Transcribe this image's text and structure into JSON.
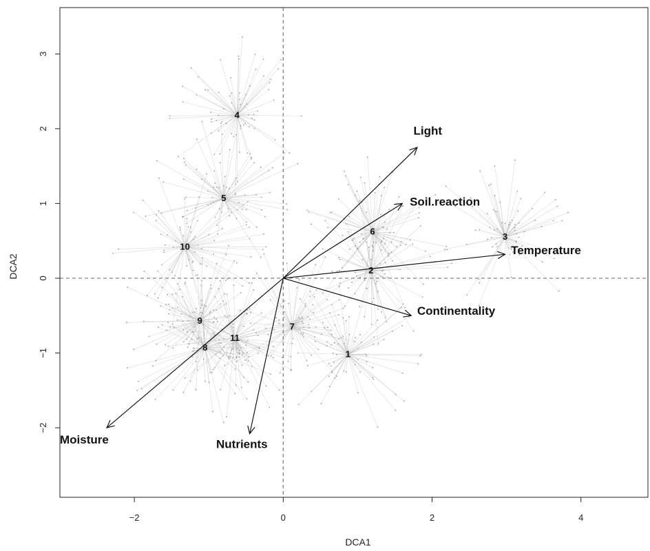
{
  "chart_data": {
    "type": "scatter",
    "title": "",
    "xlabel": "DCA1",
    "ylabel": "DCA2",
    "xlim": [
      -3.0,
      4.9
    ],
    "ylim": [
      -2.93,
      3.62
    ],
    "x_ticks": [
      -2,
      0,
      2,
      4
    ],
    "y_ticks": [
      -2,
      -1,
      0,
      1,
      2,
      3
    ],
    "x_tick_labels": [
      "−2",
      "0",
      "2",
      "4"
    ],
    "y_tick_labels": [
      "−2",
      "−1",
      "0",
      "1",
      "2",
      "3"
    ],
    "reference_lines": {
      "x": 0,
      "y": 0,
      "style": "dashed"
    },
    "grid": false,
    "legend": "none",
    "cluster_centroids": [
      {
        "label": "1",
        "x": 0.87,
        "y": -1.02
      },
      {
        "label": "2",
        "x": 1.18,
        "y": 0.1
      },
      {
        "label": "3",
        "x": 2.98,
        "y": 0.55
      },
      {
        "label": "4",
        "x": -0.62,
        "y": 2.18
      },
      {
        "label": "5",
        "x": -0.8,
        "y": 1.07
      },
      {
        "label": "6",
        "x": 1.2,
        "y": 0.62
      },
      {
        "label": "7",
        "x": 0.12,
        "y": -0.65
      },
      {
        "label": "8",
        "x": -1.05,
        "y": -0.93
      },
      {
        "label": "9",
        "x": -1.12,
        "y": -0.57
      },
      {
        "label": "10",
        "x": -1.32,
        "y": 0.42
      },
      {
        "label": "11",
        "x": -0.65,
        "y": -0.8
      }
    ],
    "environmental_vectors": [
      {
        "name": "Light",
        "x": 1.8,
        "y": 1.75
      },
      {
        "name": "Soil.reaction",
        "x": 1.6,
        "y": 1.0
      },
      {
        "name": "Temperature",
        "x": 2.98,
        "y": 0.32
      },
      {
        "name": "Continentality",
        "x": 1.72,
        "y": -0.5
      },
      {
        "name": "Nutrients",
        "x": -0.45,
        "y": -2.08
      },
      {
        "name": "Moisture",
        "x": -2.37,
        "y": -2.0
      }
    ],
    "vector_label_positions": [
      {
        "name": "Light",
        "x": 1.75,
        "y": 1.92
      },
      {
        "name": "Soil.reaction",
        "x": 1.7,
        "y": 0.97
      },
      {
        "name": "Temperature",
        "x": 3.06,
        "y": 0.32
      },
      {
        "name": "Continentality",
        "x": 1.8,
        "y": -0.49
      },
      {
        "name": "Nutrients",
        "x": -0.9,
        "y": -2.27
      },
      {
        "name": "Moisture",
        "x": -3.0,
        "y": -2.21
      }
    ],
    "colors": {
      "spider": "#bcbcbc",
      "points": "#9a9a9a",
      "vectors": "#111111",
      "axes": "#222222",
      "reference": "#777777"
    }
  }
}
